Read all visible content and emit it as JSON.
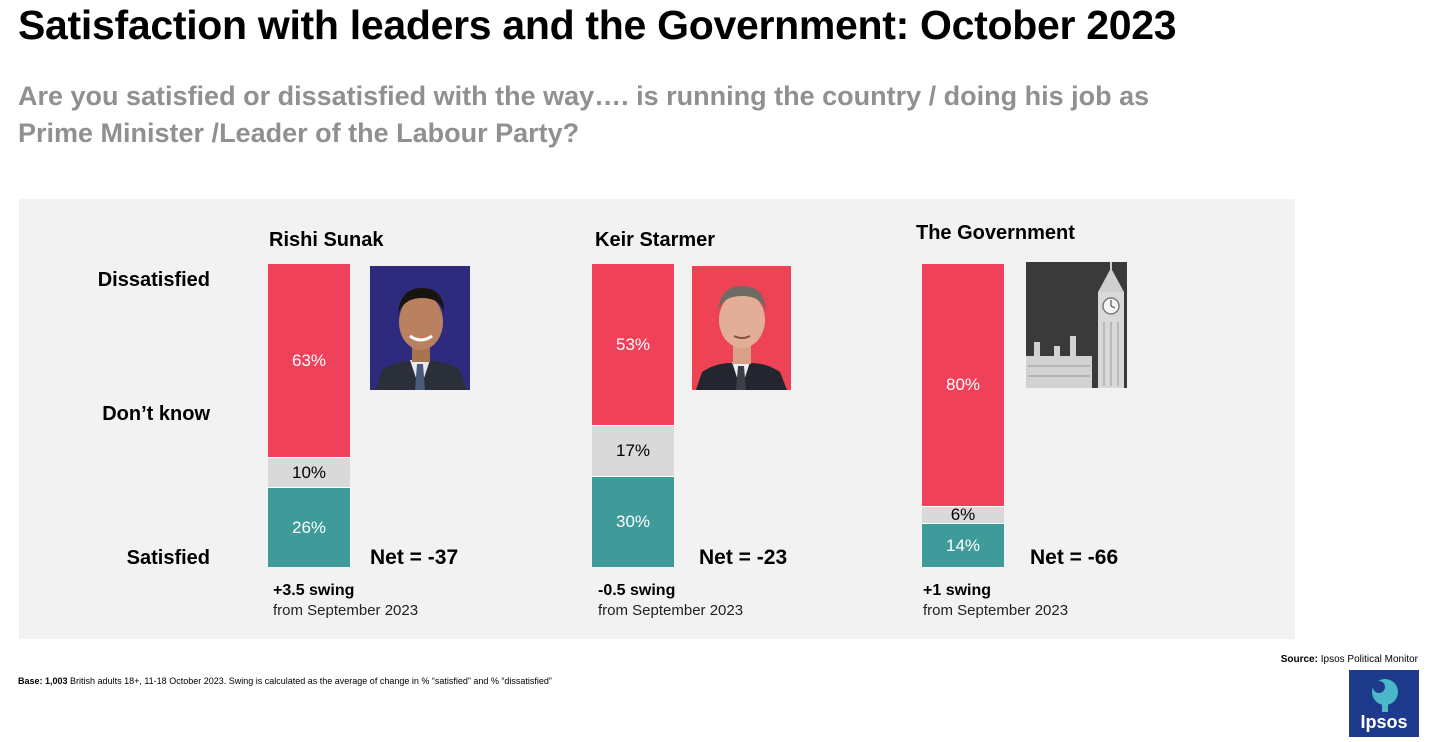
{
  "title": "Satisfaction with leaders and the Government: October 2023",
  "subtitle": "Are you satisfied or dissatisfied with the way…. is running the country / doing his job as Prime Minister /Leader of the Labour Party?",
  "row_labels": {
    "dissatisfied": "Dissatisfied",
    "dont_know": "Don’t know",
    "satisfied": "Satisfied"
  },
  "chart_data": {
    "type": "bar",
    "stacked": true,
    "categories": [
      "Rishi Sunak",
      "Keir Starmer",
      "The Government"
    ],
    "series": [
      {
        "name": "Dissatisfied",
        "values": [
          63,
          53,
          80
        ],
        "labels": [
          "63%",
          "53%",
          "80%"
        ],
        "color": "#f0415a"
      },
      {
        "name": "Don’t know",
        "values": [
          10,
          17,
          6
        ],
        "labels": [
          "10%",
          "17%",
          "6%"
        ],
        "color": "#d9d9d9"
      },
      {
        "name": "Satisfied",
        "values": [
          26,
          30,
          14
        ],
        "labels": [
          "26%",
          "30%",
          "14%"
        ],
        "color": "#3f9a9a"
      }
    ],
    "net": [
      "Net = -37",
      "Net = -23",
      "Net = -66"
    ],
    "swing": [
      "+3.5 swing",
      "-0.5 swing",
      "+1 swing"
    ],
    "swing_note": "from September 2023"
  },
  "footer": {
    "base_bold": "Base: 1,003",
    "base_text": " British adults 18+, 11-18 October 2023. Swing is calculated as the average of change in % “satisfied” and % “dissatisfied”",
    "source_bold": "Source:",
    "source_text": " Ipsos Political Monitor"
  },
  "logo": {
    "text": "Ipsos",
    "color": "#1e3a8a"
  }
}
